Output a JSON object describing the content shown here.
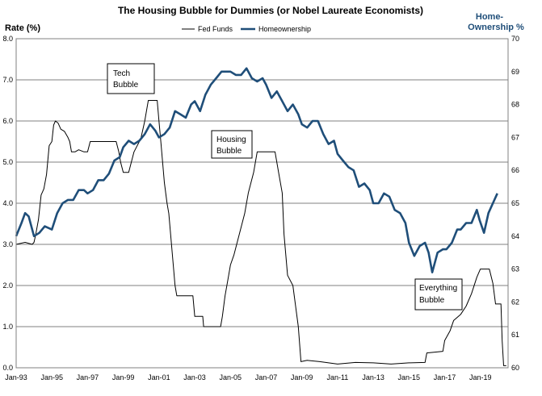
{
  "chart_data": {
    "type": "line",
    "title": "The Housing Bubble for Dummies (or Nobel Laureate Economists)",
    "ylabel_left": "Rate (%)",
    "ylabel_right_line1": "Home-",
    "ylabel_right_line2": "Ownership %",
    "ylim_left": [
      0,
      8
    ],
    "ylim_right": [
      60,
      70
    ],
    "yticks_left": [
      "0.0",
      "1.0",
      "2.0",
      "3.0",
      "4.0",
      "5.0",
      "6.0",
      "7.0",
      "8.0"
    ],
    "yticks_right": [
      "60",
      "61",
      "62",
      "63",
      "64",
      "65",
      "66",
      "67",
      "68",
      "69",
      "70"
    ],
    "xticks": [
      "Jan-93",
      "Jan-95",
      "Jan-97",
      "Jan-99",
      "Jan-01",
      "Jan-03",
      "Jan-05",
      "Jan-07",
      "Jan-09",
      "Jan-11",
      "Jan-13",
      "Jan-15",
      "Jan-17",
      "Jan-19"
    ],
    "xlim": [
      1993.0,
      2020.55
    ],
    "grid": "horizontal",
    "legend_position": "top-center",
    "annotations": [
      {
        "lines": [
          "Tech",
          "Bubble"
        ]
      },
      {
        "lines": [
          "Housing",
          "Bubble"
        ]
      },
      {
        "lines": [
          "Everything",
          "Bubble"
        ]
      }
    ],
    "series": [
      {
        "name": "Fed Funds",
        "axis": "left",
        "color": "#000000",
        "points": [
          [
            1993.0,
            3.0
          ],
          [
            1993.5,
            3.05
          ],
          [
            1993.9,
            3.0
          ],
          [
            1994.0,
            3.05
          ],
          [
            1994.1,
            3.25
          ],
          [
            1994.25,
            3.6
          ],
          [
            1994.4,
            4.2
          ],
          [
            1994.55,
            4.35
          ],
          [
            1994.7,
            4.7
          ],
          [
            1994.85,
            5.4
          ],
          [
            1995.0,
            5.5
          ],
          [
            1995.1,
            5.9
          ],
          [
            1995.2,
            6.0
          ],
          [
            1995.35,
            5.95
          ],
          [
            1995.5,
            5.8
          ],
          [
            1995.7,
            5.75
          ],
          [
            1995.9,
            5.6
          ],
          [
            1996.0,
            5.5
          ],
          [
            1996.1,
            5.25
          ],
          [
            1996.3,
            5.25
          ],
          [
            1996.5,
            5.3
          ],
          [
            1996.8,
            5.25
          ],
          [
            1997.0,
            5.25
          ],
          [
            1997.15,
            5.5
          ],
          [
            1997.3,
            5.5
          ],
          [
            1997.6,
            5.5
          ],
          [
            1997.8,
            5.5
          ],
          [
            1998.0,
            5.5
          ],
          [
            1998.3,
            5.5
          ],
          [
            1998.6,
            5.5
          ],
          [
            1998.75,
            5.25
          ],
          [
            1998.85,
            5.0
          ],
          [
            1999.0,
            4.75
          ],
          [
            1999.3,
            4.75
          ],
          [
            1999.45,
            5.0
          ],
          [
            1999.6,
            5.25
          ],
          [
            1999.9,
            5.5
          ],
          [
            2000.0,
            5.6
          ],
          [
            2000.2,
            6.0
          ],
          [
            2000.4,
            6.5
          ],
          [
            2000.9,
            6.5
          ],
          [
            2001.0,
            6.0
          ],
          [
            2001.1,
            5.5
          ],
          [
            2001.2,
            5.0
          ],
          [
            2001.3,
            4.5
          ],
          [
            2001.45,
            4.0
          ],
          [
            2001.55,
            3.75
          ],
          [
            2001.7,
            3.0
          ],
          [
            2001.8,
            2.5
          ],
          [
            2001.9,
            2.0
          ],
          [
            2002.0,
            1.75
          ],
          [
            2002.9,
            1.75
          ],
          [
            2003.0,
            1.25
          ],
          [
            2003.45,
            1.25
          ],
          [
            2003.5,
            1.0
          ],
          [
            2004.45,
            1.0
          ],
          [
            2004.55,
            1.25
          ],
          [
            2004.7,
            1.75
          ],
          [
            2004.9,
            2.25
          ],
          [
            2005.0,
            2.5
          ],
          [
            2005.2,
            2.75
          ],
          [
            2005.5,
            3.25
          ],
          [
            2005.8,
            3.75
          ],
          [
            2006.0,
            4.25
          ],
          [
            2006.3,
            4.75
          ],
          [
            2006.5,
            5.25
          ],
          [
            2007.5,
            5.25
          ],
          [
            2007.7,
            4.75
          ],
          [
            2007.9,
            4.25
          ],
          [
            2008.0,
            3.25
          ],
          [
            2008.2,
            2.25
          ],
          [
            2008.5,
            2.0
          ],
          [
            2008.8,
            1.0
          ],
          [
            2008.95,
            0.15
          ],
          [
            2009.3,
            0.18
          ],
          [
            2010.0,
            0.15
          ],
          [
            2011.0,
            0.09
          ],
          [
            2012.0,
            0.13
          ],
          [
            2013.0,
            0.12
          ],
          [
            2014.0,
            0.09
          ],
          [
            2015.0,
            0.12
          ],
          [
            2015.9,
            0.13
          ],
          [
            2016.0,
            0.36
          ],
          [
            2016.9,
            0.4
          ],
          [
            2017.0,
            0.66
          ],
          [
            2017.3,
            0.9
          ],
          [
            2017.5,
            1.15
          ],
          [
            2017.9,
            1.3
          ],
          [
            2018.2,
            1.5
          ],
          [
            2018.5,
            1.8
          ],
          [
            2018.8,
            2.2
          ],
          [
            2019.0,
            2.4
          ],
          [
            2019.5,
            2.4
          ],
          [
            2019.7,
            2.05
          ],
          [
            2019.85,
            1.55
          ],
          [
            2020.0,
            1.55
          ],
          [
            2020.15,
            1.55
          ],
          [
            2020.22,
            0.65
          ],
          [
            2020.3,
            0.05
          ],
          [
            2020.45,
            0.05
          ]
        ]
      },
      {
        "name": "Homeownership",
        "axis": "right",
        "color": "#1f4e79",
        "points": [
          [
            1993.0,
            64.0
          ],
          [
            1993.3,
            64.4
          ],
          [
            1993.5,
            64.7
          ],
          [
            1993.7,
            64.6
          ],
          [
            1994.0,
            64.0
          ],
          [
            1994.3,
            64.1
          ],
          [
            1994.6,
            64.3
          ],
          [
            1995.0,
            64.2
          ],
          [
            1995.3,
            64.7
          ],
          [
            1995.6,
            65.0
          ],
          [
            1995.9,
            65.1
          ],
          [
            1996.2,
            65.1
          ],
          [
            1996.5,
            65.4
          ],
          [
            1996.8,
            65.4
          ],
          [
            1997.0,
            65.3
          ],
          [
            1997.3,
            65.4
          ],
          [
            1997.6,
            65.7
          ],
          [
            1997.9,
            65.7
          ],
          [
            1998.2,
            65.9
          ],
          [
            1998.5,
            66.3
          ],
          [
            1998.8,
            66.4
          ],
          [
            1999.0,
            66.7
          ],
          [
            1999.3,
            66.9
          ],
          [
            1999.6,
            66.8
          ],
          [
            1999.9,
            66.9
          ],
          [
            2000.2,
            67.1
          ],
          [
            2000.5,
            67.4
          ],
          [
            2000.8,
            67.2
          ],
          [
            2001.0,
            67.0
          ],
          [
            2001.3,
            67.1
          ],
          [
            2001.6,
            67.3
          ],
          [
            2001.9,
            67.8
          ],
          [
            2002.2,
            67.7
          ],
          [
            2002.5,
            67.6
          ],
          [
            2002.8,
            68.0
          ],
          [
            2003.0,
            68.1
          ],
          [
            2003.3,
            67.8
          ],
          [
            2003.6,
            68.3
          ],
          [
            2003.9,
            68.6
          ],
          [
            2004.2,
            68.8
          ],
          [
            2004.5,
            69.0
          ],
          [
            2004.8,
            69.0
          ],
          [
            2005.0,
            69.0
          ],
          [
            2005.3,
            68.9
          ],
          [
            2005.6,
            68.9
          ],
          [
            2005.9,
            69.1
          ],
          [
            2006.2,
            68.8
          ],
          [
            2006.5,
            68.7
          ],
          [
            2006.8,
            68.8
          ],
          [
            2007.0,
            68.6
          ],
          [
            2007.3,
            68.2
          ],
          [
            2007.6,
            68.4
          ],
          [
            2007.9,
            68.1
          ],
          [
            2008.2,
            67.8
          ],
          [
            2008.5,
            68.0
          ],
          [
            2008.8,
            67.7
          ],
          [
            2009.0,
            67.4
          ],
          [
            2009.3,
            67.3
          ],
          [
            2009.6,
            67.5
          ],
          [
            2009.9,
            67.5
          ],
          [
            2010.2,
            67.1
          ],
          [
            2010.5,
            66.8
          ],
          [
            2010.8,
            66.9
          ],
          [
            2011.0,
            66.5
          ],
          [
            2011.3,
            66.3
          ],
          [
            2011.6,
            66.1
          ],
          [
            2011.9,
            66.0
          ],
          [
            2012.2,
            65.5
          ],
          [
            2012.5,
            65.6
          ],
          [
            2012.8,
            65.4
          ],
          [
            2013.0,
            65.0
          ],
          [
            2013.3,
            65.0
          ],
          [
            2013.6,
            65.3
          ],
          [
            2013.9,
            65.2
          ],
          [
            2014.2,
            64.8
          ],
          [
            2014.5,
            64.7
          ],
          [
            2014.8,
            64.4
          ],
          [
            2015.0,
            63.8
          ],
          [
            2015.3,
            63.4
          ],
          [
            2015.6,
            63.7
          ],
          [
            2015.9,
            63.8
          ],
          [
            2016.1,
            63.5
          ],
          [
            2016.3,
            62.9
          ],
          [
            2016.6,
            63.5
          ],
          [
            2016.9,
            63.6
          ],
          [
            2017.1,
            63.6
          ],
          [
            2017.4,
            63.8
          ],
          [
            2017.7,
            64.2
          ],
          [
            2017.9,
            64.2
          ],
          [
            2018.2,
            64.4
          ],
          [
            2018.5,
            64.4
          ],
          [
            2018.8,
            64.8
          ],
          [
            2018.95,
            64.5
          ],
          [
            2019.2,
            64.1
          ],
          [
            2019.45,
            64.7
          ],
          [
            2019.7,
            65.0
          ],
          [
            2019.95,
            65.3
          ]
        ]
      }
    ]
  }
}
